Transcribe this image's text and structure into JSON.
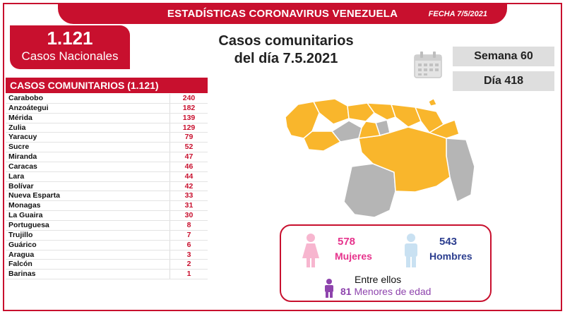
{
  "header": {
    "title": "ESTADÍSTICAS CORONAVIRUS VENEZUELA",
    "date": "FECHA 7/5/2021"
  },
  "national": {
    "count": "1.121",
    "label": "Casos Nacionales"
  },
  "headline": {
    "line1": "Casos comunitarios",
    "line2": "del día 7.5.2021"
  },
  "week_label": "Semana 60",
  "day_label": "Día 418",
  "community_table": {
    "title": "CASOS COMUNITARIOS (1.121)",
    "rows": [
      {
        "state": "Carabobo",
        "cases": "240"
      },
      {
        "state": "Anzoátegui",
        "cases": "182"
      },
      {
        "state": "Mérida",
        "cases": "139"
      },
      {
        "state": "Zulia",
        "cases": "129"
      },
      {
        "state": "Yaracuy",
        "cases": "79"
      },
      {
        "state": "Sucre",
        "cases": "52"
      },
      {
        "state": "Miranda",
        "cases": "47"
      },
      {
        "state": "Caracas",
        "cases": "46"
      },
      {
        "state": "Lara",
        "cases": "44"
      },
      {
        "state": "Bolívar",
        "cases": "42"
      },
      {
        "state": "Nueva Esparta",
        "cases": "33"
      },
      {
        "state": "Monagas",
        "cases": "31"
      },
      {
        "state": "La Guaira",
        "cases": "30"
      },
      {
        "state": "Portuguesa",
        "cases": "8"
      },
      {
        "state": "Trujillo",
        "cases": "7"
      },
      {
        "state": "Guárico",
        "cases": "6"
      },
      {
        "state": "Aragua",
        "cases": "3"
      },
      {
        "state": "Falcón",
        "cases": "2"
      },
      {
        "state": "Barinas",
        "cases": "1"
      }
    ]
  },
  "gender": {
    "female_count": "578",
    "female_label": "Mujeres",
    "male_count": "543",
    "male_label": "Hombres",
    "among_label": "Entre ellos",
    "minors_count": "81",
    "minors_label": "Menores de edad"
  },
  "colors": {
    "brand_red": "#c8102e",
    "affected_state": "#f9b62c",
    "unaffected_state": "#b5b5b5",
    "female": "#e6338c",
    "male": "#2c3e8f",
    "minors": "#8e44ad"
  },
  "icons": [
    "calendar-icon",
    "female-icon",
    "male-icon",
    "child-icon",
    "venezuela-map"
  ]
}
